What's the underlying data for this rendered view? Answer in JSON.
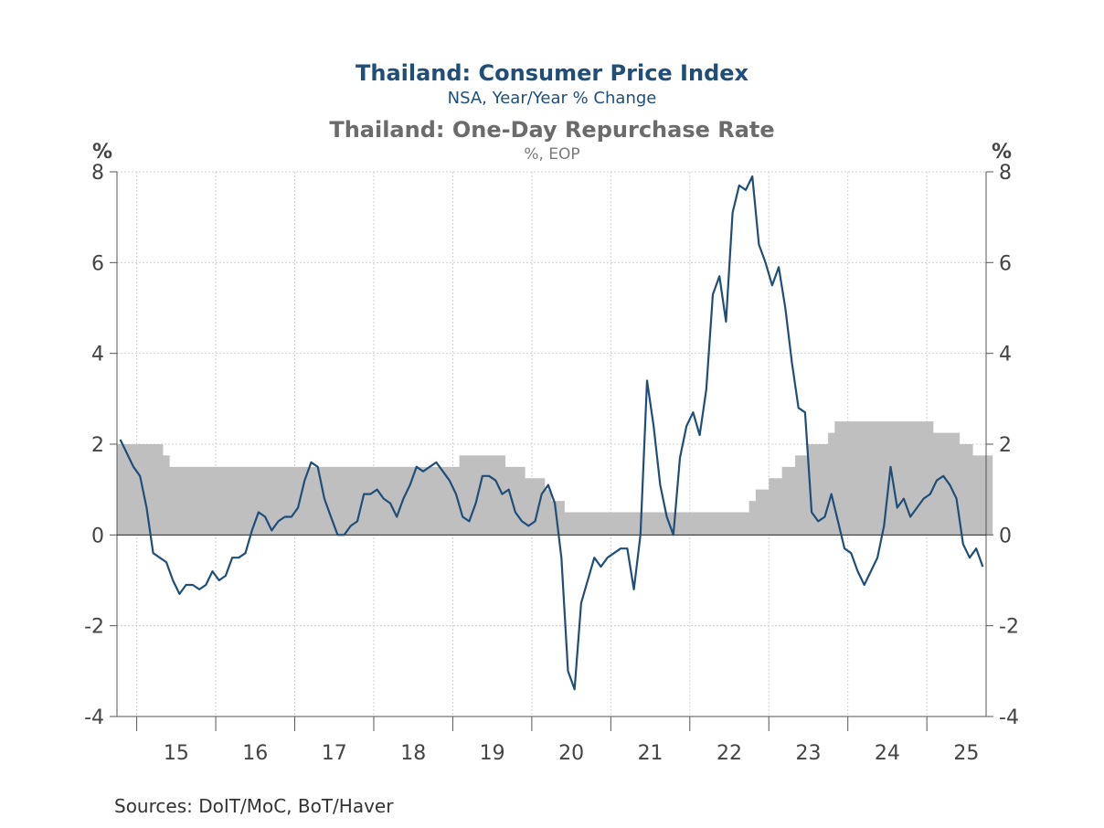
{
  "titles": {
    "cpi_title": "Thailand: Consumer Price Index",
    "cpi_subtitle": "NSA, Year/Year % Change",
    "rate_title": "Thailand: One-Day Repurchase Rate",
    "rate_subtitle": "%, EOP"
  },
  "source": "Sources:  DoIT/MoC, BoT/Haver",
  "colors": {
    "cpi": "#1f4e79",
    "rate": "#bfbfbf",
    "grid": "#d0d0d0",
    "axis": "#555555",
    "title_gray": "#6b6b6b"
  },
  "chart_data": {
    "type": "line",
    "x_unit": "monthly, decimal year",
    "ylim": [
      -4,
      8
    ],
    "y_ticks": [
      -4,
      -2,
      0,
      2,
      4,
      6,
      8
    ],
    "left_unit_label": "%",
    "right_unit_label": "%",
    "xlim": [
      2014.75,
      2025.75
    ],
    "x_tick_labels": [
      "15",
      "16",
      "17",
      "18",
      "19",
      "20",
      "21",
      "22",
      "23",
      "24",
      "25"
    ],
    "grid": true,
    "zero_line": true,
    "series": [
      {
        "name": "Thailand: Consumer Price Index",
        "kind": "line",
        "x_start": 2014.75,
        "values": [
          2.1,
          1.8,
          1.5,
          1.3,
          0.6,
          -0.4,
          -0.5,
          -0.6,
          -1.0,
          -1.3,
          -1.1,
          -1.1,
          -1.2,
          -1.1,
          -0.8,
          -1.0,
          -0.9,
          -0.5,
          -0.5,
          -0.4,
          0.1,
          0.5,
          0.4,
          0.1,
          0.3,
          0.4,
          0.4,
          0.6,
          1.2,
          1.6,
          1.5,
          0.8,
          0.4,
          0.0,
          0.0,
          0.2,
          0.3,
          0.9,
          0.9,
          1.0,
          0.8,
          0.7,
          0.4,
          0.8,
          1.1,
          1.5,
          1.4,
          1.5,
          1.6,
          1.4,
          1.2,
          0.9,
          0.4,
          0.3,
          0.7,
          1.3,
          1.3,
          1.2,
          0.9,
          1.0,
          0.5,
          0.3,
          0.2,
          0.3,
          0.9,
          1.1,
          0.7,
          -0.5,
          -3.0,
          -3.4,
          -1.5,
          -1.0,
          -0.5,
          -0.7,
          -0.5,
          -0.4,
          -0.3,
          -0.3,
          -1.2,
          0.0,
          3.4,
          2.4,
          1.1,
          0.4,
          0.0,
          1.7,
          2.4,
          2.7,
          2.2,
          3.2,
          5.3,
          5.7,
          4.7,
          7.1,
          7.7,
          7.6,
          7.9,
          6.4,
          6.0,
          5.5,
          5.9,
          5.0,
          3.8,
          2.8,
          2.7,
          0.5,
          0.3,
          0.4,
          0.9,
          0.3,
          -0.3,
          -0.4,
          -0.8,
          -1.1,
          -0.8,
          -0.5,
          0.2,
          1.5,
          0.6,
          0.8,
          0.4,
          0.6,
          0.8,
          0.9,
          1.2,
          1.3,
          1.1,
          0.8,
          -0.2,
          -0.5,
          -0.3,
          -0.7
        ]
      },
      {
        "name": "Thailand: One-Day Repurchase Rate",
        "kind": "area-step",
        "x_start": 2014.75,
        "values": [
          2.0,
          2.0,
          2.0,
          2.0,
          2.0,
          2.0,
          2.0,
          1.75,
          1.5,
          1.5,
          1.5,
          1.5,
          1.5,
          1.5,
          1.5,
          1.5,
          1.5,
          1.5,
          1.5,
          1.5,
          1.5,
          1.5,
          1.5,
          1.5,
          1.5,
          1.5,
          1.5,
          1.5,
          1.5,
          1.5,
          1.5,
          1.5,
          1.5,
          1.5,
          1.5,
          1.5,
          1.5,
          1.5,
          1.5,
          1.5,
          1.5,
          1.5,
          1.5,
          1.5,
          1.5,
          1.5,
          1.5,
          1.5,
          1.5,
          1.5,
          1.5,
          1.5,
          1.75,
          1.75,
          1.75,
          1.75,
          1.75,
          1.75,
          1.75,
          1.5,
          1.5,
          1.5,
          1.25,
          1.25,
          1.25,
          1.0,
          0.75,
          0.75,
          0.5,
          0.5,
          0.5,
          0.5,
          0.5,
          0.5,
          0.5,
          0.5,
          0.5,
          0.5,
          0.5,
          0.5,
          0.5,
          0.5,
          0.5,
          0.5,
          0.5,
          0.5,
          0.5,
          0.5,
          0.5,
          0.5,
          0.5,
          0.5,
          0.5,
          0.5,
          0.5,
          0.5,
          0.75,
          1.0,
          1.0,
          1.25,
          1.25,
          1.5,
          1.5,
          1.75,
          1.75,
          2.0,
          2.0,
          2.0,
          2.25,
          2.5,
          2.5,
          2.5,
          2.5,
          2.5,
          2.5,
          2.5,
          2.5,
          2.5,
          2.5,
          2.5,
          2.5,
          2.5,
          2.5,
          2.5,
          2.25,
          2.25,
          2.25,
          2.25,
          2.0,
          2.0,
          1.75,
          1.75,
          1.75
        ]
      }
    ]
  }
}
